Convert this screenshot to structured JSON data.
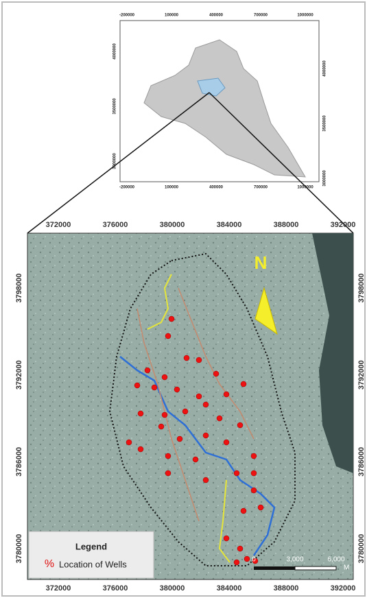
{
  "inset": {
    "x_ticks": [
      -200000,
      100000,
      400000,
      700000,
      1000000
    ],
    "y_ticks_left": [
      4000000,
      3500000,
      3000000
    ],
    "y_ticks_right": [
      4000000,
      3500000,
      3000000
    ]
  },
  "main": {
    "x_ticks": [
      372000,
      376000,
      380000,
      384000,
      388000,
      392000
    ],
    "y_ticks": [
      3798000,
      3792000,
      3786000,
      3780000
    ]
  },
  "north": "N",
  "scale_bar": [
    "0",
    "3,000",
    "6,000",
    "M"
  ],
  "legend": {
    "title": "Legend",
    "symbol": "%",
    "label": "Location of Wells"
  }
}
